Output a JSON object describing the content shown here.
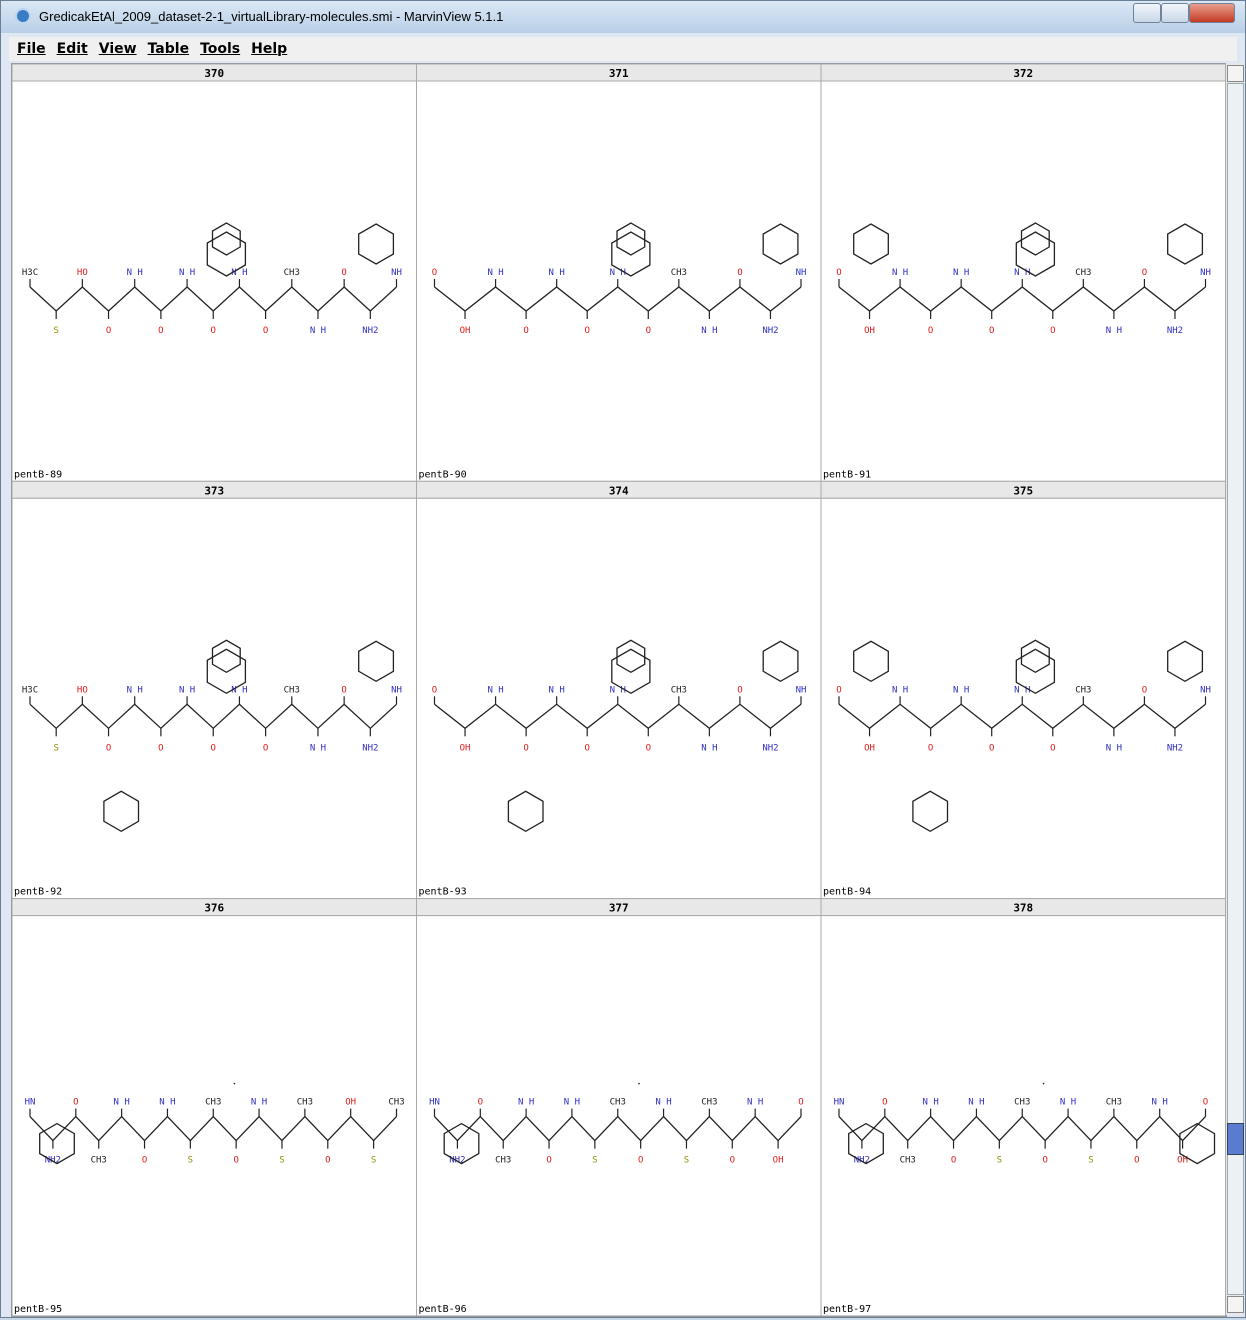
{
  "window": {
    "title": "GredicakEtAl_2009_dataset-2-1_virtualLibrary-molecules.smi - MarvinView 5.1.1"
  },
  "menu": [
    "File",
    "Edit",
    "View",
    "Table",
    "Tools",
    "Help"
  ],
  "cells": [
    {
      "index": 370,
      "name": "pentB-89",
      "atoms": [
        "H3C",
        "S",
        "HO",
        "O",
        "N H",
        "O",
        "N H",
        "O",
        "N H",
        "O",
        "CH3",
        "N H",
        "O",
        "NH2",
        "NH"
      ]
    },
    {
      "index": 371,
      "name": "pentB-90",
      "atoms": [
        "O",
        "OH",
        "N H",
        "O",
        "N H",
        "O",
        "N H",
        "O",
        "CH3",
        "N H",
        "O",
        "NH2",
        "NH"
      ]
    },
    {
      "index": 372,
      "name": "pentB-91",
      "atoms": [
        "O",
        "OH",
        "N H",
        "O",
        "N H",
        "O",
        "N H",
        "O",
        "CH3",
        "N H",
        "O",
        "NH2",
        "NH"
      ]
    },
    {
      "index": 373,
      "name": "pentB-92",
      "atoms": [
        "H3C",
        "S",
        "HO",
        "O",
        "N H",
        "O",
        "N H",
        "O",
        "N H",
        "O",
        "CH3",
        "N H",
        "O",
        "NH2",
        "NH"
      ]
    },
    {
      "index": 374,
      "name": "pentB-93",
      "atoms": [
        "O",
        "OH",
        "N H",
        "O",
        "N H",
        "O",
        "N H",
        "O",
        "CH3",
        "N H",
        "O",
        "NH2",
        "NH"
      ]
    },
    {
      "index": 375,
      "name": "pentB-94",
      "atoms": [
        "O",
        "OH",
        "N H",
        "O",
        "N H",
        "O",
        "N H",
        "O",
        "CH3",
        "N H",
        "O",
        "NH2",
        "NH"
      ]
    },
    {
      "index": 376,
      "name": "pentB-95",
      "atoms": [
        "HN",
        "NH2",
        "O",
        "CH3",
        "N H",
        "O",
        "N H",
        "S",
        "CH3",
        "O",
        "N H",
        "S",
        "CH3",
        "O",
        "OH",
        "S",
        "CH3"
      ]
    },
    {
      "index": 377,
      "name": "pentB-96",
      "atoms": [
        "HN",
        "NH2",
        "O",
        "CH3",
        "N H",
        "O",
        "N H",
        "S",
        "CH3",
        "O",
        "N H",
        "S",
        "CH3",
        "O",
        "N H",
        "OH",
        "O"
      ]
    },
    {
      "index": 378,
      "name": "pentB-97",
      "atoms": [
        "HN",
        "NH2",
        "O",
        "CH3",
        "N H",
        "O",
        "N H",
        "S",
        "CH3",
        "O",
        "N H",
        "S",
        "CH3",
        "O",
        "N H",
        "OH",
        "O"
      ]
    }
  ]
}
